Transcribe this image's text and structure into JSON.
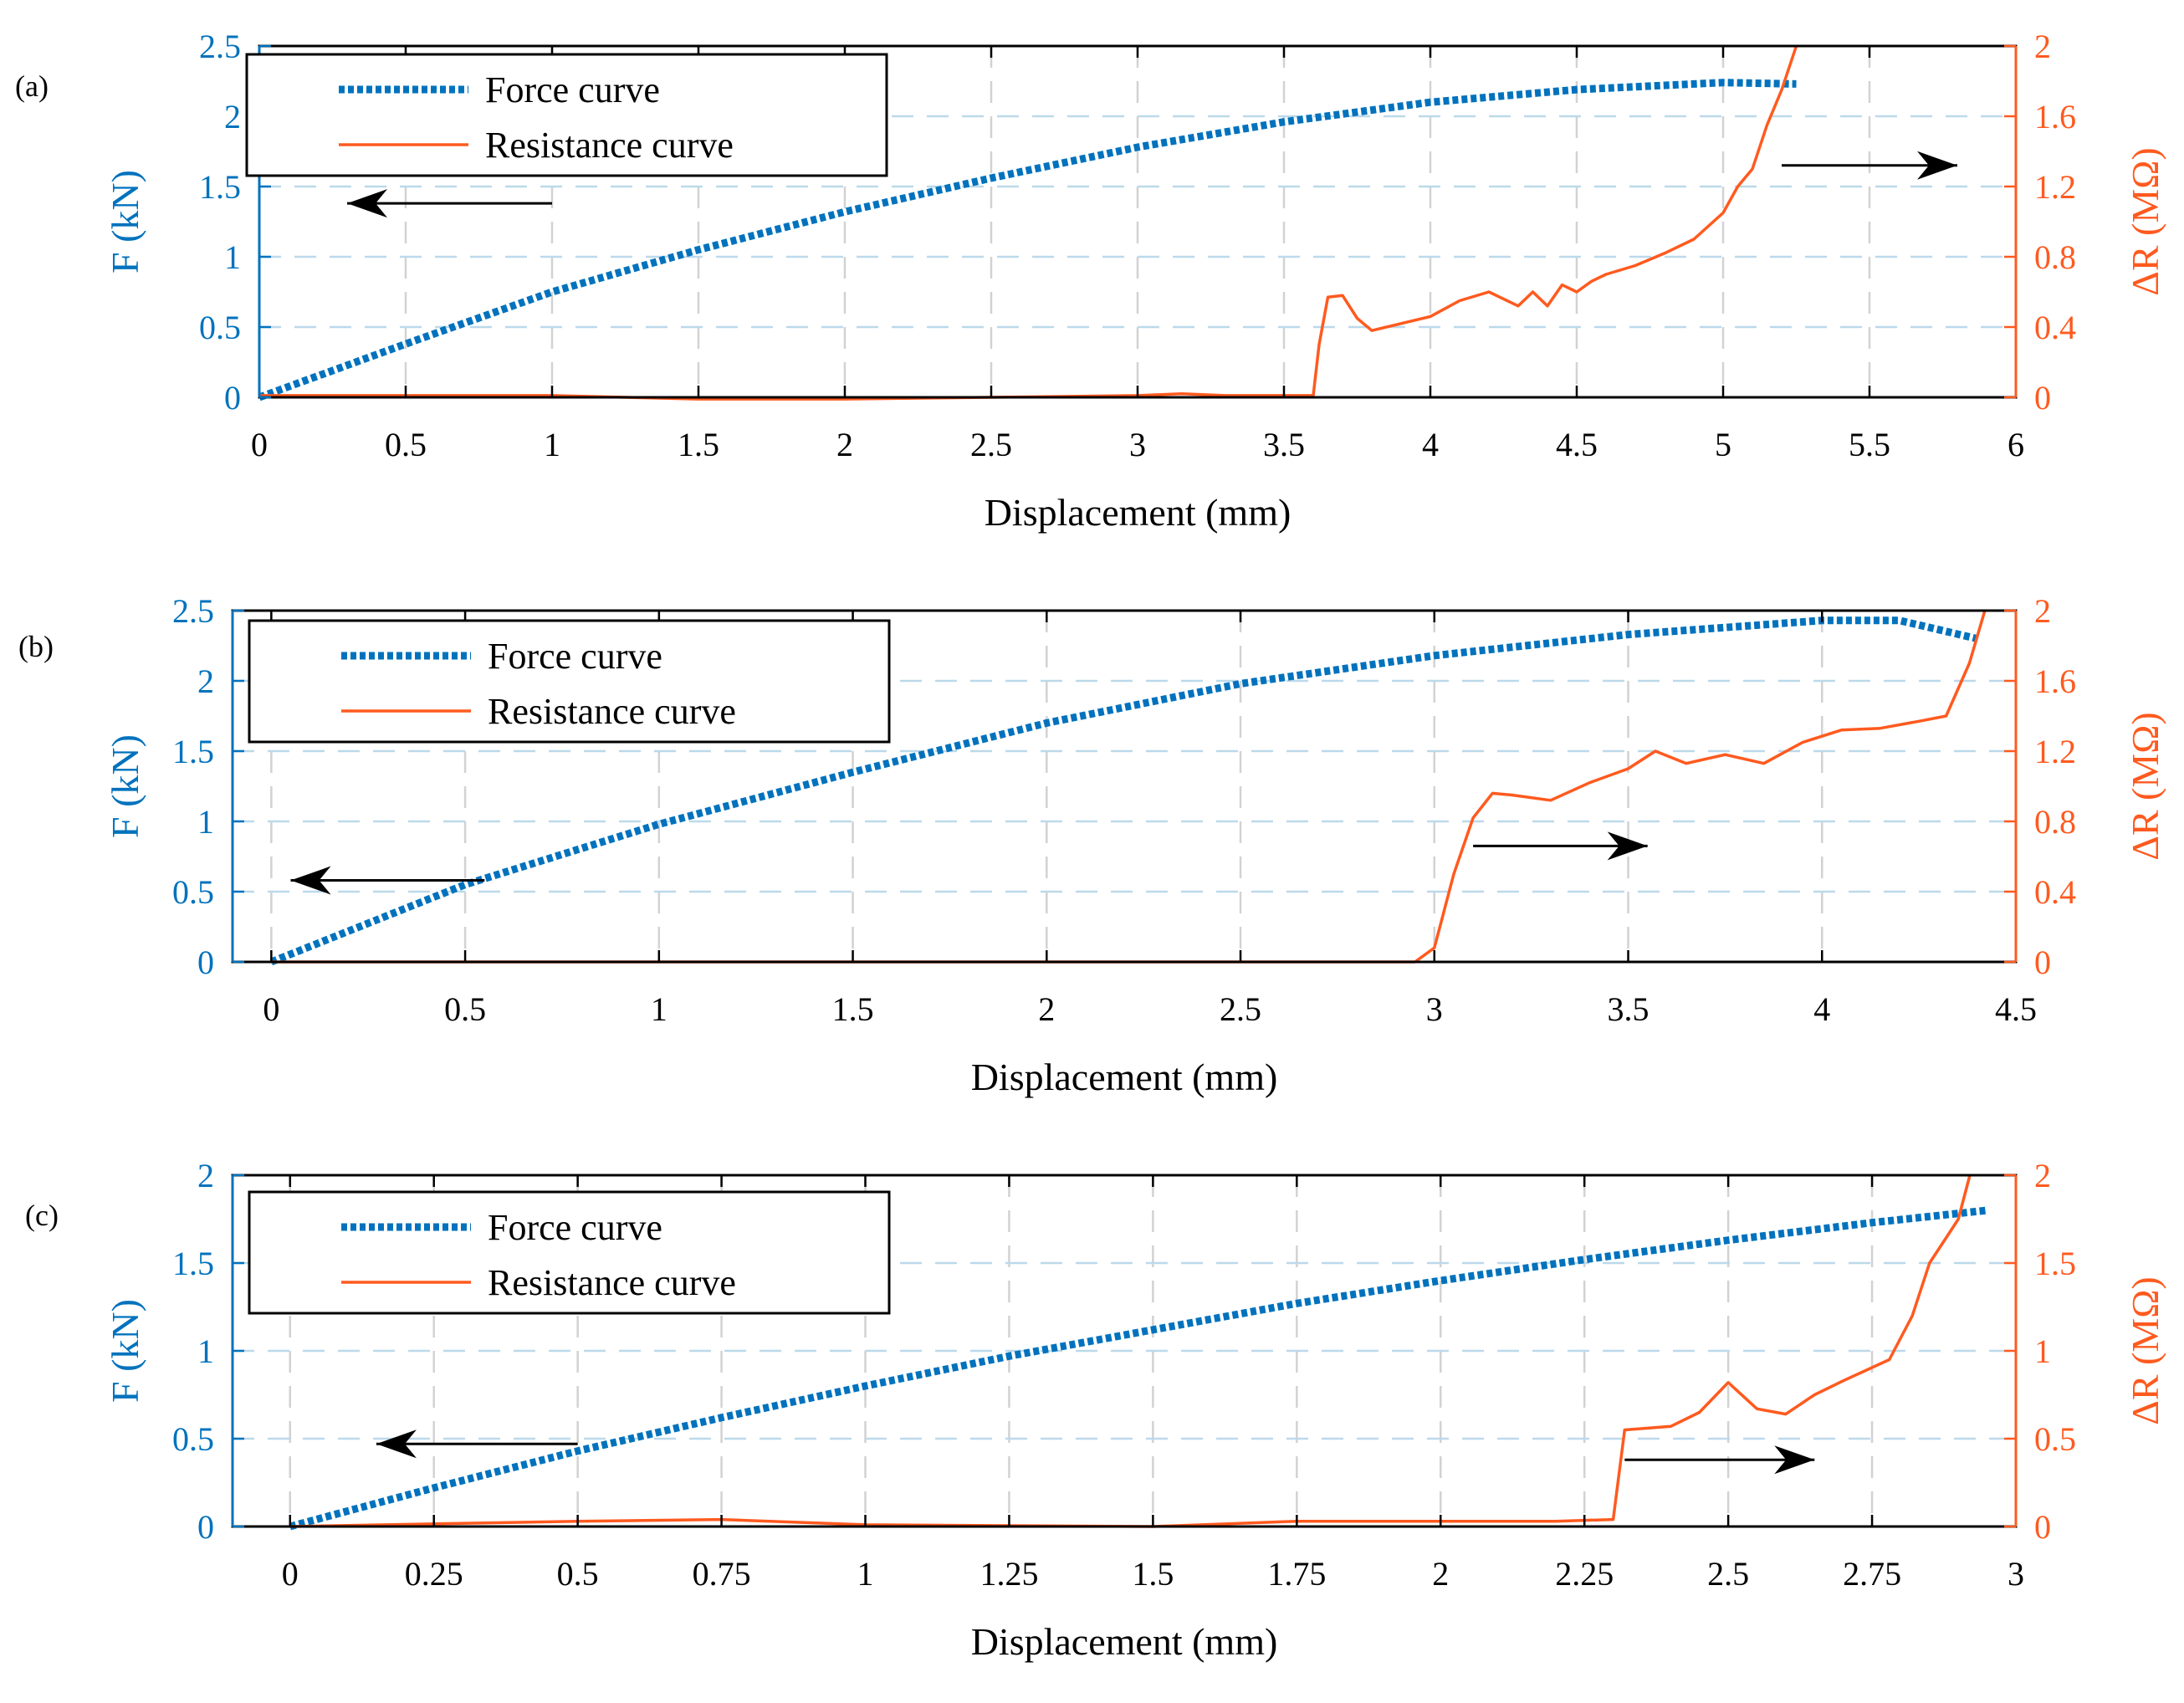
{
  "colors": {
    "force": "#0072BD",
    "resistance": "#FF5A1F",
    "grid": "#d2d2d2",
    "grid_h": "#bcd9ea",
    "axis": "#000000"
  },
  "chart_data": [
    {
      "panel_label": "(a)",
      "type": "line",
      "xlabel": "Displacement (mm)",
      "ylabel_left": "F (kN)",
      "ylabel_right": "ΔR (MΩ)",
      "xlim": [
        0,
        6
      ],
      "ylim_left": [
        0,
        2.5
      ],
      "ylim_right": [
        0,
        2
      ],
      "xticks": [
        0,
        0.5,
        1,
        1.5,
        2,
        2.5,
        3,
        3.5,
        4,
        4.5,
        5,
        5.5,
        6
      ],
      "xtick_labels": [
        "0",
        "0.5",
        "1",
        "1.5",
        "2",
        "2.5",
        "3",
        "3.5",
        "4",
        "4.5",
        "5",
        "5.5",
        "6"
      ],
      "yticks_left": [
        0,
        0.5,
        1,
        1.5,
        2,
        2.5
      ],
      "ytick_labels_left": [
        "0",
        "0.5",
        "1",
        "1.5",
        "2",
        "2.5"
      ],
      "yticks_right": [
        0,
        0.4,
        0.8,
        1.2,
        1.6,
        2
      ],
      "ytick_labels_right": [
        "0",
        "0.4",
        "0.8",
        "1.2",
        "1.6",
        "2"
      ],
      "legend": [
        "Force curve",
        "Resistance curve"
      ],
      "series": [
        {
          "name": "Force curve",
          "axis": "left",
          "style": "dotted",
          "x": [
            0,
            0.5,
            1,
            1.5,
            2,
            2.5,
            3,
            3.5,
            4,
            4.5,
            5,
            5.25
          ],
          "y": [
            0,
            0.38,
            0.75,
            1.05,
            1.32,
            1.56,
            1.78,
            1.96,
            2.1,
            2.19,
            2.24,
            2.23
          ]
        },
        {
          "name": "Resistance curve",
          "axis": "right",
          "style": "solid",
          "x": [
            0,
            0.5,
            1,
            1.5,
            2,
            2.5,
            3,
            3.15,
            3.3,
            3.6,
            3.62,
            3.65,
            3.7,
            3.75,
            3.8,
            3.9,
            4.0,
            4.1,
            4.2,
            4.3,
            4.35,
            4.4,
            4.45,
            4.5,
            4.55,
            4.6,
            4.7,
            4.8,
            4.9,
            5.0,
            5.05,
            5.1,
            5.15,
            5.2,
            5.25
          ],
          "y": [
            0.01,
            0.01,
            0.01,
            -0.01,
            -0.01,
            0.0,
            0.01,
            0.02,
            0.01,
            0.01,
            0.3,
            0.57,
            0.58,
            0.45,
            0.38,
            0.42,
            0.46,
            0.55,
            0.6,
            0.52,
            0.6,
            0.52,
            0.64,
            0.6,
            0.66,
            0.7,
            0.75,
            0.82,
            0.9,
            1.05,
            1.2,
            1.3,
            1.55,
            1.75,
            2.0
          ]
        }
      ],
      "annotations": [
        {
          "type": "arrow",
          "direction": "left",
          "from": [
            1.0,
            1.38
          ],
          "to": [
            0.3,
            1.38
          ],
          "axis": "left"
        },
        {
          "type": "arrow",
          "direction": "right",
          "from": [
            5.2,
            1.32
          ],
          "to": [
            5.8,
            1.32
          ],
          "axis": "right"
        }
      ]
    },
    {
      "panel_label": "(b)",
      "type": "line",
      "xlabel": "Displacement (mm)",
      "ylabel_left": "F (kN)",
      "ylabel_right": "ΔR (MΩ)",
      "xlim": [
        -0.1,
        4.5
      ],
      "ylim_left": [
        0,
        2.5
      ],
      "ylim_right": [
        0,
        2
      ],
      "xticks": [
        0,
        0.5,
        1,
        1.5,
        2,
        2.5,
        3,
        3.5,
        4,
        4.5
      ],
      "xtick_labels": [
        "0",
        "0.5",
        "1",
        "1.5",
        "2",
        "2.5",
        "3",
        "3.5",
        "4",
        "4.5"
      ],
      "yticks_left": [
        0,
        0.5,
        1,
        1.5,
        2,
        2.5
      ],
      "ytick_labels_left": [
        "0",
        "0.5",
        "1",
        "1.5",
        "2",
        "2.5"
      ],
      "yticks_right": [
        0,
        0.4,
        0.8,
        1.2,
        1.6,
        2
      ],
      "ytick_labels_right": [
        "0",
        "0.4",
        "0.8",
        "1.2",
        "1.6",
        "2"
      ],
      "legend": [
        "Force curve",
        "Resistance curve"
      ],
      "series": [
        {
          "name": "Force curve",
          "axis": "left",
          "style": "dotted",
          "x": [
            0,
            0.5,
            1,
            1.5,
            2,
            2.5,
            3,
            3.5,
            4,
            4.2,
            4.4
          ],
          "y": [
            0,
            0.55,
            0.98,
            1.35,
            1.7,
            1.98,
            2.18,
            2.33,
            2.43,
            2.43,
            2.3
          ]
        },
        {
          "name": "Resistance curve",
          "axis": "right",
          "style": "solid",
          "x": [
            0,
            0.5,
            1,
            1.5,
            2,
            2.5,
            2.95,
            3.0,
            3.05,
            3.1,
            3.15,
            3.2,
            3.3,
            3.4,
            3.5,
            3.57,
            3.65,
            3.75,
            3.85,
            3.95,
            4.05,
            4.15,
            4.25,
            4.32,
            4.38,
            4.42
          ],
          "y": [
            0,
            0,
            0,
            0,
            0,
            0,
            0,
            0.08,
            0.5,
            0.82,
            0.96,
            0.95,
            0.92,
            1.02,
            1.1,
            1.2,
            1.13,
            1.18,
            1.13,
            1.25,
            1.32,
            1.33,
            1.37,
            1.4,
            1.7,
            2.0
          ]
        }
      ],
      "annotations": [
        {
          "type": "arrow",
          "direction": "left",
          "from": [
            0.55,
            0.58
          ],
          "to": [
            0.05,
            0.58
          ],
          "axis": "left"
        },
        {
          "type": "arrow",
          "direction": "right",
          "from": [
            3.1,
            0.66
          ],
          "to": [
            3.55,
            0.66
          ],
          "axis": "right"
        }
      ]
    },
    {
      "panel_label": "(c)",
      "type": "line",
      "xlabel": "Displacement (mm)",
      "ylabel_left": "F (kN)",
      "ylabel_right": "ΔR (MΩ)",
      "xlim": [
        -0.1,
        3
      ],
      "ylim_left": [
        0,
        2
      ],
      "ylim_right": [
        0,
        2
      ],
      "xticks": [
        0,
        0.25,
        0.5,
        0.75,
        1,
        1.25,
        1.5,
        1.75,
        2,
        2.25,
        2.5,
        2.75,
        3
      ],
      "xtick_labels": [
        "0",
        "0.25",
        "0.5",
        "0.75",
        "1",
        "1.25",
        "1.5",
        "1.75",
        "2",
        "2.25",
        "2.5",
        "2.75",
        "3"
      ],
      "yticks_left": [
        0,
        0.5,
        1,
        1.5,
        2
      ],
      "ytick_labels_left": [
        "0",
        "0.5",
        "1",
        "1.5",
        "2"
      ],
      "yticks_right": [
        0,
        0.5,
        1,
        1.5,
        2
      ],
      "ytick_labels_right": [
        "0",
        "0.5",
        "1",
        "1.5",
        "2"
      ],
      "legend": [
        "Force curve",
        "Resistance curve"
      ],
      "series": [
        {
          "name": "Force curve",
          "axis": "left",
          "style": "dotted",
          "x": [
            0,
            0.25,
            0.5,
            0.75,
            1,
            1.25,
            1.5,
            1.75,
            2,
            2.25,
            2.5,
            2.75,
            2.95
          ],
          "y": [
            0,
            0.22,
            0.43,
            0.62,
            0.8,
            0.97,
            1.12,
            1.27,
            1.4,
            1.52,
            1.63,
            1.73,
            1.8
          ]
        },
        {
          "name": "Resistance curve",
          "axis": "right",
          "style": "solid",
          "x": [
            0,
            0.5,
            0.75,
            1,
            1.5,
            1.75,
            2,
            2.2,
            2.3,
            2.32,
            2.4,
            2.45,
            2.5,
            2.55,
            2.6,
            2.65,
            2.7,
            2.78,
            2.82,
            2.85,
            2.88,
            2.9,
            2.92
          ],
          "y": [
            0,
            0.03,
            0.04,
            0.01,
            0.0,
            0.03,
            0.03,
            0.03,
            0.04,
            0.55,
            0.57,
            0.65,
            0.82,
            0.67,
            0.64,
            0.75,
            0.83,
            0.95,
            1.2,
            1.5,
            1.65,
            1.75,
            2.0
          ]
        }
      ],
      "annotations": [
        {
          "type": "arrow",
          "direction": "left",
          "from": [
            0.5,
            0.47
          ],
          "to": [
            0.15,
            0.47
          ],
          "axis": "left"
        },
        {
          "type": "arrow",
          "direction": "right",
          "from": [
            2.32,
            0.38
          ],
          "to": [
            2.65,
            0.38
          ],
          "axis": "right"
        }
      ]
    }
  ]
}
